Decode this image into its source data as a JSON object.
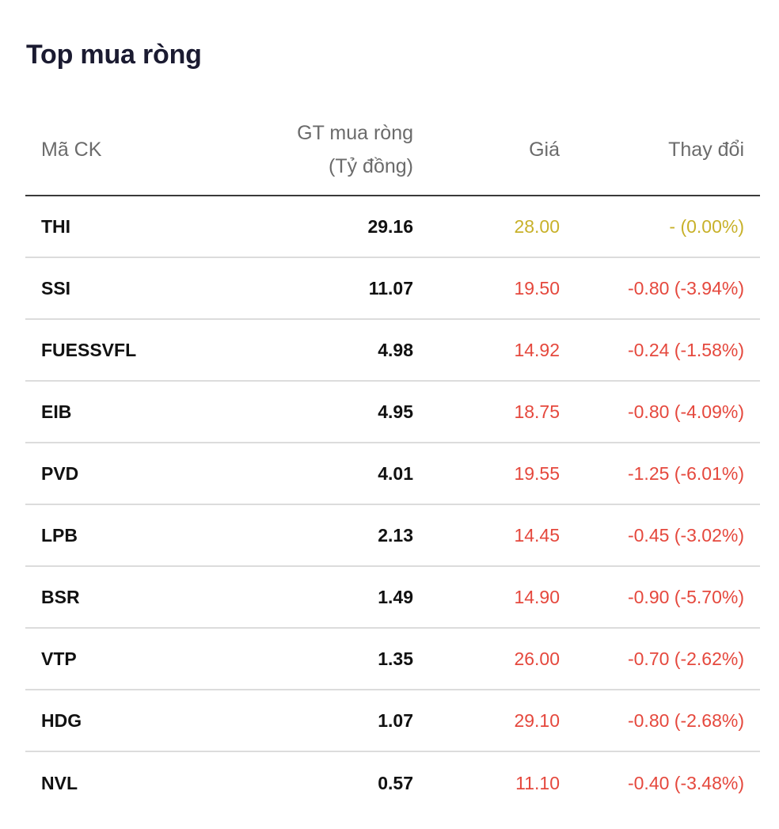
{
  "widget": {
    "title": "Top mua ròng"
  },
  "table": {
    "headers": {
      "symbol": "Mã CK",
      "net_value_line1": "GT mua ròng",
      "net_value_line2": "(Tỷ đồng)",
      "price": "Giá",
      "change": "Thay đổi"
    },
    "rows": [
      {
        "symbol": "THI",
        "net_value": "29.16",
        "price": "28.00",
        "change": "- (0.00%)",
        "trend": "ref"
      },
      {
        "symbol": "SSI",
        "net_value": "11.07",
        "price": "19.50",
        "change": "-0.80 (-3.94%)",
        "trend": "down"
      },
      {
        "symbol": "FUESSVFL",
        "net_value": "4.98",
        "price": "14.92",
        "change": "-0.24 (-1.58%)",
        "trend": "down"
      },
      {
        "symbol": "EIB",
        "net_value": "4.95",
        "price": "18.75",
        "change": "-0.80 (-4.09%)",
        "trend": "down"
      },
      {
        "symbol": "PVD",
        "net_value": "4.01",
        "price": "19.55",
        "change": "-1.25 (-6.01%)",
        "trend": "down"
      },
      {
        "symbol": "LPB",
        "net_value": "2.13",
        "price": "14.45",
        "change": "-0.45 (-3.02%)",
        "trend": "down"
      },
      {
        "symbol": "BSR",
        "net_value": "1.49",
        "price": "14.90",
        "change": "-0.90 (-5.70%)",
        "trend": "down"
      },
      {
        "symbol": "VTP",
        "net_value": "1.35",
        "price": "26.00",
        "change": "-0.70 (-2.62%)",
        "trend": "down"
      },
      {
        "symbol": "HDG",
        "net_value": "1.07",
        "price": "29.10",
        "change": "-0.80 (-2.68%)",
        "trend": "down"
      },
      {
        "symbol": "NVL",
        "net_value": "0.57",
        "price": "11.10",
        "change": "-0.40 (-3.48%)",
        "trend": "down"
      }
    ]
  },
  "colors": {
    "reference": "#c8b12a",
    "down": "#e5483d",
    "up": "#21a366",
    "header_text": "#6b6b6b",
    "title_text": "#1b1b31"
  }
}
